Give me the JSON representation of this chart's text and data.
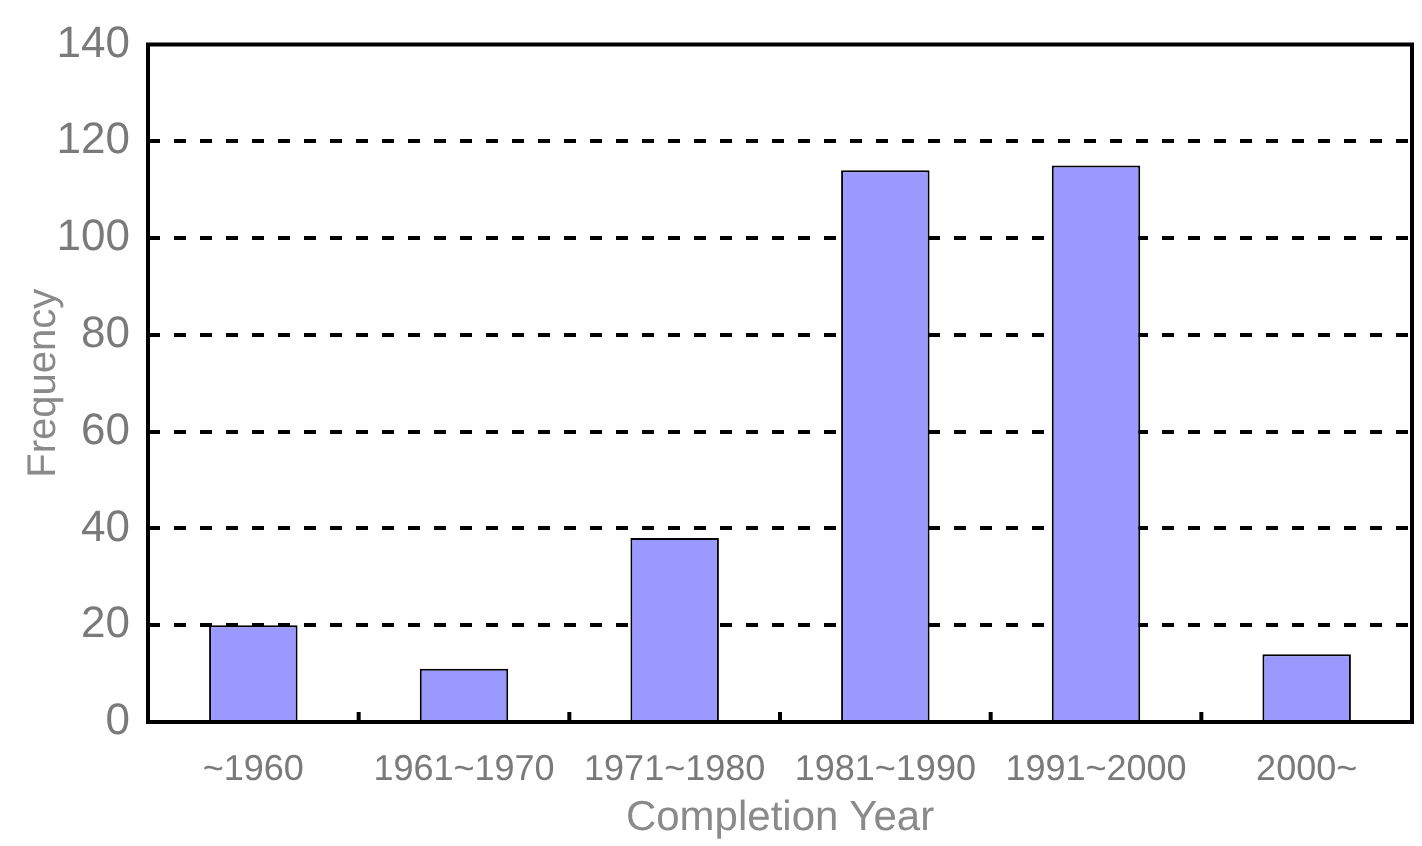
{
  "chart_data": {
    "type": "bar",
    "xlabel": "Completion Year",
    "ylabel": "Frequency",
    "categories": [
      "~1960",
      "1961~1970",
      "1971~1980",
      "1981~1990",
      "1991~2000",
      "2000~"
    ],
    "values": [
      20,
      11,
      38,
      114,
      115,
      14
    ],
    "color": "#9999ff",
    "ylim": [
      0,
      140
    ],
    "yticks": [
      0,
      20,
      40,
      60,
      80,
      100,
      120,
      140
    ],
    "grid": "y"
  }
}
